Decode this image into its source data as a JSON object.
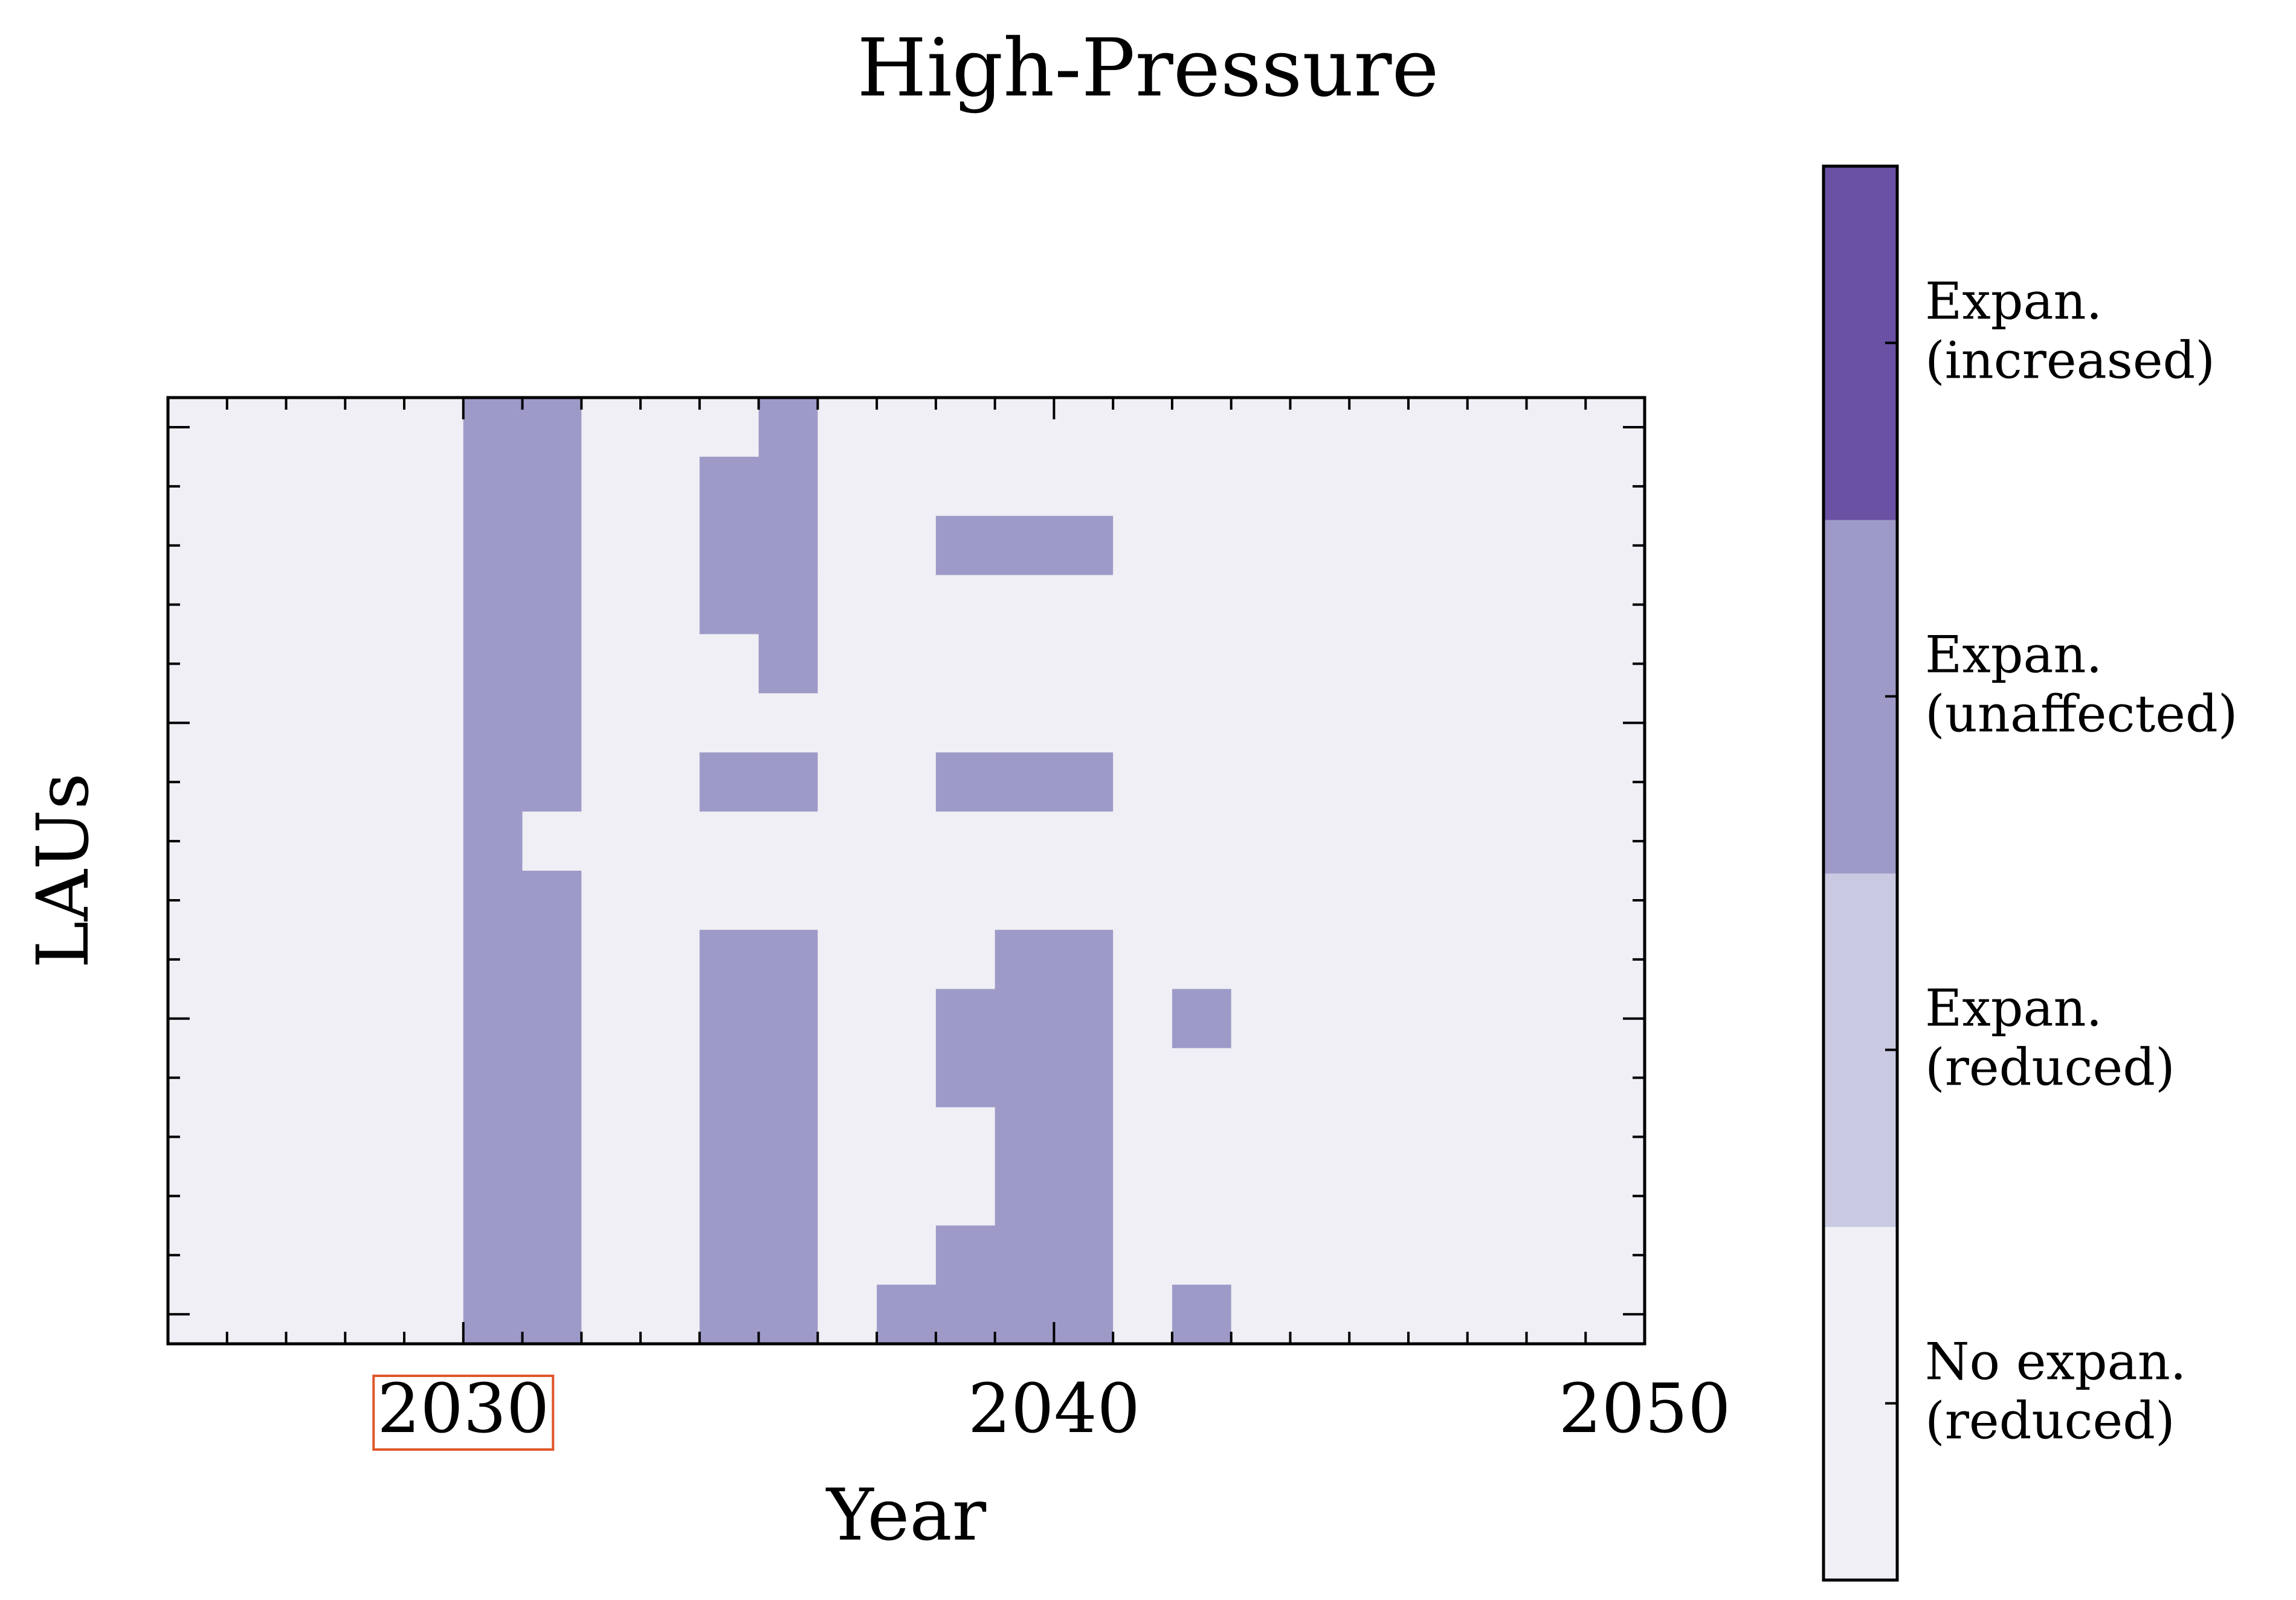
{
  "chart_data": {
    "type": "heatmap",
    "title": "High-Pressure",
    "xlabel": "Year",
    "ylabel": "LAUs",
    "xlim": [
      2025,
      2050
    ],
    "x_ticks": [
      "2030",
      "2040",
      "2050"
    ],
    "highlighted_tick": "2030",
    "highlight_color": "#e0562a",
    "years": [
      2025,
      2026,
      2027,
      2028,
      2029,
      2030,
      2031,
      2032,
      2033,
      2034,
      2035,
      2036,
      2037,
      2038,
      2039,
      2040,
      2041,
      2042,
      2043,
      2044,
      2045,
      2046,
      2047,
      2048,
      2049
    ],
    "rows": [
      [
        0,
        0,
        0,
        0,
        0,
        2,
        2,
        0,
        0,
        0,
        2,
        0,
        0,
        0,
        0,
        0,
        0,
        0,
        0,
        0,
        0,
        0,
        0,
        0,
        0
      ],
      [
        0,
        0,
        0,
        0,
        0,
        2,
        2,
        0,
        0,
        2,
        2,
        0,
        0,
        0,
        0,
        0,
        0,
        0,
        0,
        0,
        0,
        0,
        0,
        0,
        0
      ],
      [
        0,
        0,
        0,
        0,
        0,
        2,
        2,
        0,
        0,
        2,
        2,
        0,
        0,
        2,
        2,
        2,
        0,
        0,
        0,
        0,
        0,
        0,
        0,
        0,
        0
      ],
      [
        0,
        0,
        0,
        0,
        0,
        2,
        2,
        0,
        0,
        2,
        2,
        0,
        0,
        0,
        0,
        0,
        0,
        0,
        0,
        0,
        0,
        0,
        0,
        0,
        0
      ],
      [
        0,
        0,
        0,
        0,
        0,
        2,
        2,
        0,
        0,
        0,
        2,
        0,
        0,
        0,
        0,
        0,
        0,
        0,
        0,
        0,
        0,
        0,
        0,
        0,
        0
      ],
      [
        0,
        0,
        0,
        0,
        0,
        2,
        2,
        0,
        0,
        0,
        0,
        0,
        0,
        0,
        0,
        0,
        0,
        0,
        0,
        0,
        0,
        0,
        0,
        0,
        0
      ],
      [
        0,
        0,
        0,
        0,
        0,
        2,
        2,
        0,
        0,
        2,
        2,
        0,
        0,
        2,
        2,
        2,
        0,
        0,
        0,
        0,
        0,
        0,
        0,
        0,
        0
      ],
      [
        0,
        0,
        0,
        0,
        0,
        2,
        0,
        0,
        0,
        0,
        0,
        0,
        0,
        0,
        0,
        0,
        0,
        0,
        0,
        0,
        0,
        0,
        0,
        0,
        0
      ],
      [
        0,
        0,
        0,
        0,
        0,
        2,
        2,
        0,
        0,
        0,
        0,
        0,
        0,
        0,
        0,
        0,
        0,
        0,
        0,
        0,
        0,
        0,
        0,
        0,
        0
      ],
      [
        0,
        0,
        0,
        0,
        0,
        2,
        2,
        0,
        0,
        2,
        2,
        0,
        0,
        0,
        2,
        2,
        0,
        0,
        0,
        0,
        0,
        0,
        0,
        0,
        0
      ],
      [
        0,
        0,
        0,
        0,
        0,
        2,
        2,
        0,
        0,
        2,
        2,
        0,
        0,
        2,
        2,
        2,
        0,
        2,
        0,
        0,
        0,
        0,
        0,
        0,
        0
      ],
      [
        0,
        0,
        0,
        0,
        0,
        2,
        2,
        0,
        0,
        2,
        2,
        0,
        0,
        2,
        2,
        2,
        0,
        0,
        0,
        0,
        0,
        0,
        0,
        0,
        0
      ],
      [
        0,
        0,
        0,
        0,
        0,
        2,
        2,
        0,
        0,
        2,
        2,
        0,
        0,
        0,
        2,
        2,
        0,
        0,
        0,
        0,
        0,
        0,
        0,
        0,
        0
      ],
      [
        0,
        0,
        0,
        0,
        0,
        2,
        2,
        0,
        0,
        2,
        2,
        0,
        0,
        0,
        2,
        2,
        0,
        0,
        0,
        0,
        0,
        0,
        0,
        0,
        0
      ],
      [
        0,
        0,
        0,
        0,
        0,
        2,
        2,
        0,
        0,
        2,
        2,
        0,
        0,
        2,
        2,
        2,
        0,
        0,
        0,
        0,
        0,
        0,
        0,
        0,
        0
      ],
      [
        0,
        0,
        0,
        0,
        0,
        2,
        2,
        0,
        0,
        2,
        2,
        0,
        2,
        2,
        2,
        2,
        0,
        2,
        0,
        0,
        0,
        0,
        0,
        0,
        0
      ]
    ],
    "colorbar": {
      "categories": [
        {
          "label_line1": "No expan.",
          "label_line2": "(reduced)",
          "color": "#efeff5"
        },
        {
          "label_line1": "Expan.",
          "label_line2": "(reduced)",
          "color": "#cac9e2"
        },
        {
          "label_line1": "Expan.",
          "label_line2": "(unaffected)",
          "color": "#9e9ac8"
        },
        {
          "label_line1": "Expan.",
          "label_line2": "(increased)",
          "color": "#6a51a3"
        }
      ]
    },
    "grid": false,
    "legend": "colorbar-right"
  }
}
